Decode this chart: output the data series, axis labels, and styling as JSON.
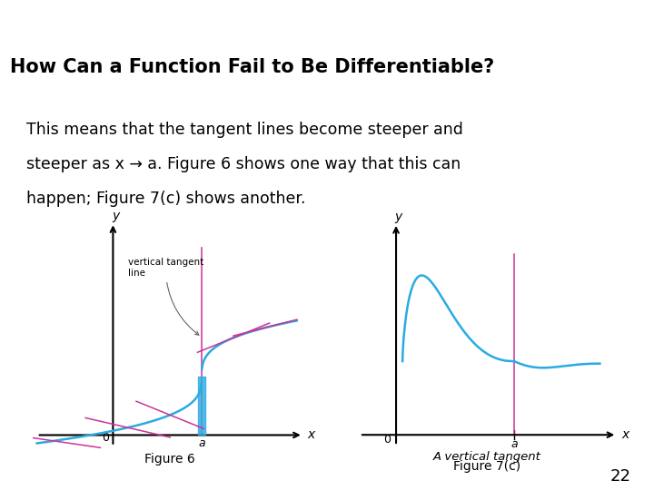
{
  "title": "How Can a Function Fail to Be Differentiable?",
  "body_text_line1": "This means that the tangent lines become steeper and",
  "body_text_line2": "steeper as x → a. Figure 6 shows one way that this can",
  "body_text_line3": "happen; Figure 7(c) shows another.",
  "fig6_label": "Figure 6",
  "fig7_label": "Figure 7(c)",
  "fig7_sublabel": "A vertical tangent",
  "slide_number": "22",
  "title_bg": "#29ABE2",
  "header_bg": "#F5E6C8",
  "body_bg": "#FFFFFF",
  "title_color": "#000000",
  "body_color": "#000000",
  "curve_color": "#29ABE2",
  "tangent_color": "#CC3399",
  "vertical_line_color": "#CC3399",
  "axis_color": "#000000",
  "fig_bg": "#FFFFFF",
  "header_line_color": "#BBBBBB"
}
